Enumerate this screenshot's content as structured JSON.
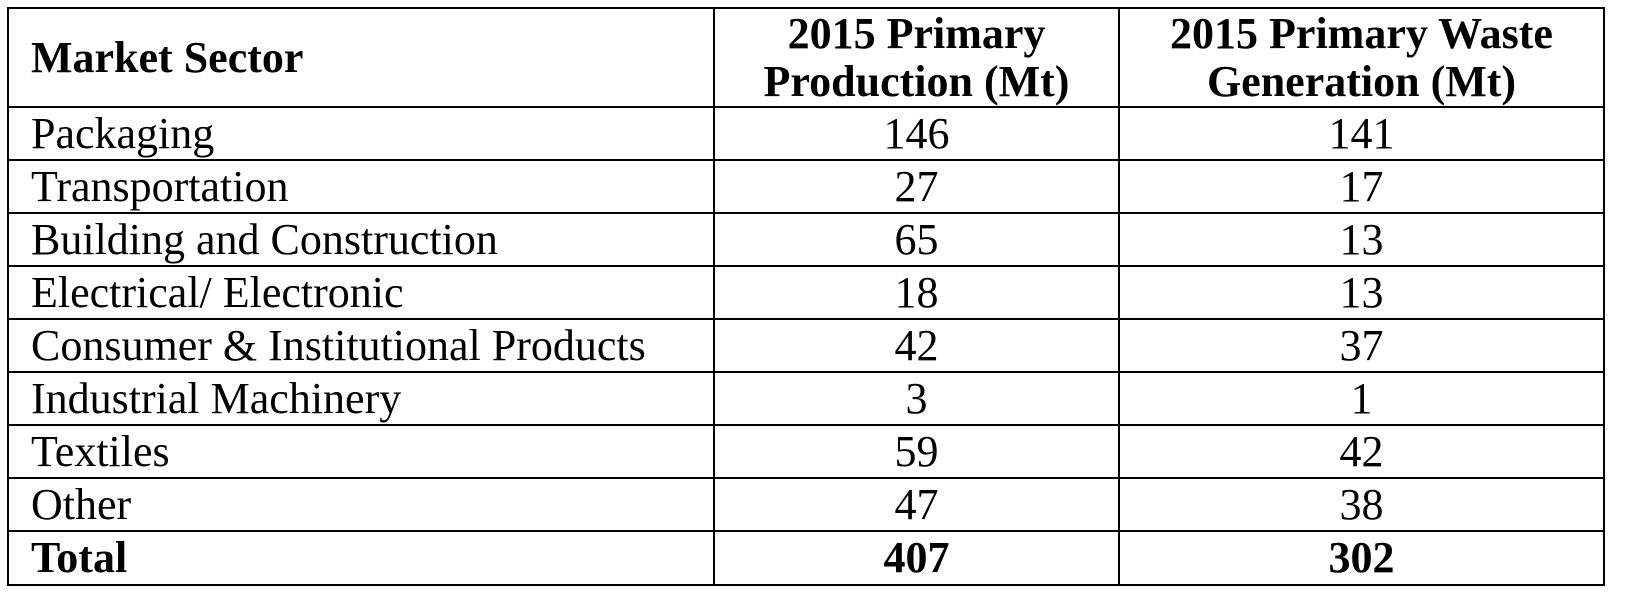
{
  "table": {
    "headers": [
      "Market Sector",
      "2015 Primary Production (Mt)",
      "2015 Primary Waste Generation (Mt)"
    ],
    "header_lines": {
      "production": [
        "2015 Primary",
        "Production (Mt)"
      ],
      "waste": [
        "2015 Primary Waste",
        "Generation (Mt)"
      ]
    },
    "rows": [
      {
        "sector": "Packaging",
        "production": "146",
        "waste": "141"
      },
      {
        "sector": "Transportation",
        "production": "27",
        "waste": "17"
      },
      {
        "sector": "Building and Construction",
        "production": "65",
        "waste": "13"
      },
      {
        "sector": "Electrical/ Electronic",
        "production": "18",
        "waste": "13"
      },
      {
        "sector": "Consumer & Institutional Products",
        "production": "42",
        "waste": "37"
      },
      {
        "sector": "Industrial Machinery",
        "production": "3",
        "waste": "1"
      },
      {
        "sector": "Textiles",
        "production": "59",
        "waste": "42"
      },
      {
        "sector": "Other",
        "production": "47",
        "waste": "38"
      }
    ],
    "total": {
      "label": "Total",
      "production": "407",
      "waste": "302"
    }
  }
}
